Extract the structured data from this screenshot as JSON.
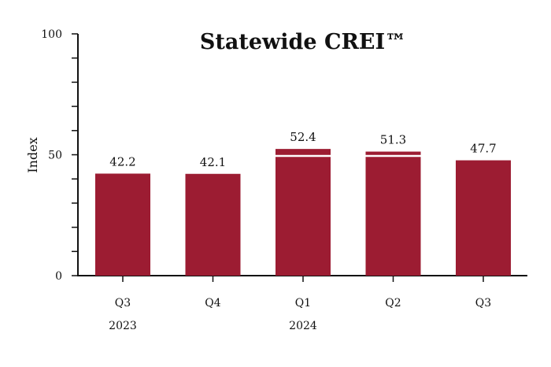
{
  "chart_data": {
    "type": "bar",
    "title": "Statewide CREI™",
    "ylabel": "Index",
    "xlabel": "",
    "ylim": [
      0,
      100
    ],
    "y_ticks": [
      0,
      50,
      100
    ],
    "categories": [
      "Q3",
      "Q4",
      "Q1",
      "Q2",
      "Q3"
    ],
    "category_years": [
      "2023",
      "",
      "2024",
      "",
      ""
    ],
    "values": [
      42.2,
      42.1,
      52.4,
      51.3,
      47.7
    ],
    "value_labels": [
      "42.2",
      "42.1",
      "52.4",
      "51.3",
      "47.7"
    ],
    "bar_color": "#9c1c32",
    "reference_line": {
      "value": 49.5,
      "color": "#ffffff"
    },
    "grid": false,
    "legend": "none"
  }
}
